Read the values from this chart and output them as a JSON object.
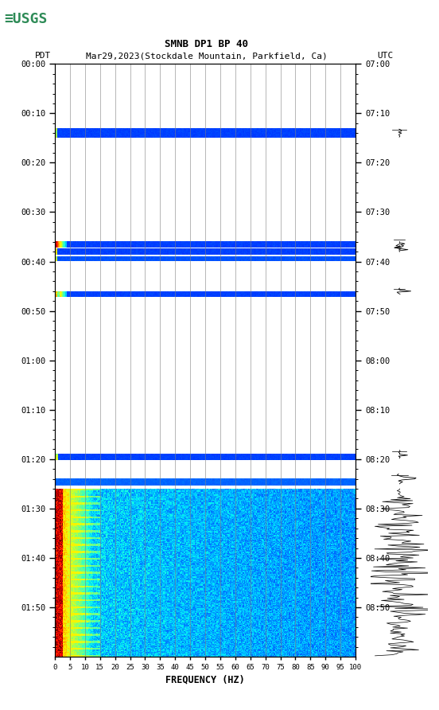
{
  "title_line1": "SMNB DP1 BP 40",
  "title_line2_left": "PDT",
  "title_line2_mid": "Mar29,2023(Stockdale Mountain, Parkfield, Ca)",
  "title_line2_right": "UTC",
  "xlabel": "FREQUENCY (HZ)",
  "freq_ticks": [
    0,
    5,
    10,
    15,
    20,
    25,
    30,
    35,
    40,
    45,
    50,
    55,
    60,
    65,
    70,
    75,
    80,
    85,
    90,
    95,
    100
  ],
  "left_time_labels": [
    "00:00",
    "00:10",
    "00:20",
    "00:30",
    "00:40",
    "00:50",
    "01:00",
    "01:10",
    "01:20",
    "01:30",
    "01:40",
    "01:50"
  ],
  "right_time_labels": [
    "07:00",
    "07:10",
    "07:20",
    "07:30",
    "07:40",
    "07:50",
    "08:00",
    "08:10",
    "08:20",
    "08:30",
    "08:40",
    "08:50"
  ],
  "background_color": "#ffffff",
  "grid_color": "#808080",
  "total_minutes": 120,
  "n_time_rows": 600,
  "n_freq_cols": 300,
  "usgs_green": "#2e8b57",
  "colormap": "jet",
  "blue_band_value": 0.18,
  "white_value": -1.0,
  "eq_base_value": 0.25,
  "eq_low_freq_peak": 0.95
}
